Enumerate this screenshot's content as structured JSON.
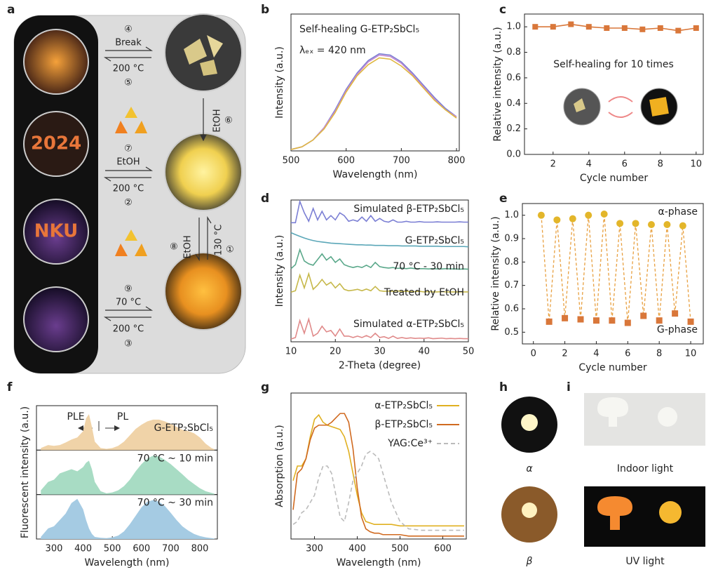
{
  "panel_a": {
    "letter": "a",
    "photo_texts": [
      "2024",
      "NKU"
    ],
    "labels": [
      "④",
      "Break",
      "200 °C",
      "⑤",
      "EtOH",
      "⑥",
      "⑦",
      "EtOH",
      "200 °C",
      "②",
      "⑧",
      "EtOH",
      "130 °C",
      "①",
      "⑨",
      "70 °C",
      "200 °C",
      "③"
    ]
  },
  "panel_h": {
    "letter": "h",
    "captions": [
      "α",
      "β"
    ]
  },
  "panel_i": {
    "letter": "i",
    "captions": [
      "Indoor light",
      "UV light"
    ]
  },
  "chart_data": [
    {
      "panel": "b",
      "type": "line",
      "xlabel": "Wavelength (nm)",
      "ylabel": "Intensity (a.u.)",
      "annotations": [
        "Self-healing G-ETP₂SbCl₅",
        "λₑₓ = 420 nm"
      ],
      "x": [
        500,
        520,
        540,
        560,
        580,
        600,
        620,
        640,
        660,
        680,
        700,
        720,
        740,
        760,
        780,
        800
      ],
      "series": [
        {
          "color": "#7b7fd4",
          "values": [
            0.01,
            0.03,
            0.08,
            0.17,
            0.3,
            0.45,
            0.57,
            0.66,
            0.71,
            0.7,
            0.65,
            0.57,
            0.48,
            0.39,
            0.31,
            0.25
          ]
        },
        {
          "color": "#c48ad0",
          "values": [
            0.01,
            0.03,
            0.08,
            0.17,
            0.29,
            0.44,
            0.56,
            0.65,
            0.7,
            0.69,
            0.64,
            0.56,
            0.47,
            0.38,
            0.3,
            0.25
          ]
        },
        {
          "color": "#e0b840",
          "values": [
            0.01,
            0.03,
            0.08,
            0.16,
            0.28,
            0.43,
            0.55,
            0.63,
            0.68,
            0.67,
            0.62,
            0.55,
            0.46,
            0.37,
            0.3,
            0.24
          ]
        }
      ],
      "xlim": [
        500,
        805
      ],
      "ylim": [
        0,
        1
      ],
      "xticks": [
        500,
        600,
        700,
        800
      ]
    },
    {
      "panel": "c",
      "type": "line",
      "markers": "square",
      "xlabel": "Cycle number",
      "ylabel": "Relative intensity (a.u.)",
      "annotations": [
        "Self-healing for 10 times"
      ],
      "x": [
        1,
        2,
        3,
        4,
        5,
        6,
        7,
        8,
        9,
        10
      ],
      "series": [
        {
          "color": "#d9773a",
          "values": [
            1.0,
            1.0,
            1.02,
            1.0,
            0.99,
            0.99,
            0.98,
            0.99,
            0.97,
            0.99
          ]
        }
      ],
      "xlim": [
        0.4,
        10.4
      ],
      "ylim": [
        0,
        1.1
      ],
      "xticks": [
        2,
        4,
        6,
        8,
        10
      ],
      "yticks": [
        {
          "value": 0,
          "label": "0.0"
        },
        0.2,
        0.4,
        0.6,
        0.8,
        {
          "value": 1,
          "label": "1.0"
        }
      ]
    },
    {
      "panel": "d",
      "type": "line",
      "xlabel": "2-Theta (degree)",
      "ylabel": "Intensity (a.u.)",
      "x": [
        10,
        11,
        12,
        13,
        14,
        15,
        16,
        17,
        18,
        19,
        20,
        21,
        22,
        23,
        24,
        25,
        26,
        27,
        28,
        29,
        30,
        31,
        32,
        33,
        34,
        35,
        36,
        37,
        38,
        39,
        40,
        41,
        42,
        43,
        44,
        45,
        46,
        47,
        48,
        49,
        50
      ],
      "series": [
        {
          "name": "Simulated β-ETP₂SbCl₅",
          "color": "#7b7fd4",
          "values": [
            4.2,
            4.2,
            4.95,
            4.55,
            4.25,
            4.7,
            4.3,
            4.6,
            4.3,
            4.45,
            4.3,
            4.55,
            4.45,
            4.25,
            4.3,
            4.25,
            4.4,
            4.25,
            4.45,
            4.25,
            4.35,
            4.25,
            4.22,
            4.3,
            4.22,
            4.22,
            4.25,
            4.22,
            4.22,
            4.24,
            4.22,
            4.22,
            4.22,
            4.23,
            4.22,
            4.22,
            4.22,
            4.22,
            4.23,
            4.22,
            4.22
          ]
        },
        {
          "name": "G-ETP₂SbCl₅",
          "color": "#5ba7b8",
          "values": [
            3.85,
            3.78,
            3.72,
            3.66,
            3.61,
            3.57,
            3.54,
            3.52,
            3.5,
            3.48,
            3.47,
            3.46,
            3.45,
            3.44,
            3.43,
            3.42,
            3.42,
            3.41,
            3.41,
            3.4,
            3.4,
            3.4,
            3.39,
            3.39,
            3.39,
            3.38,
            3.38,
            3.38,
            3.38,
            3.37,
            3.37,
            3.37,
            3.37,
            3.37,
            3.36,
            3.36,
            3.36,
            3.36,
            3.36,
            3.36,
            3.35
          ]
        },
        {
          "name": "70 °C - 30 min",
          "color": "#5aa88a",
          "values": [
            2.58,
            2.72,
            3.25,
            2.85,
            2.75,
            2.7,
            2.9,
            3.1,
            2.88,
            3.0,
            2.8,
            2.92,
            2.72,
            2.66,
            2.62,
            2.66,
            2.62,
            2.7,
            2.62,
            2.8,
            2.65,
            2.62,
            2.6,
            2.62,
            2.59,
            2.6,
            2.58,
            2.6,
            2.58,
            2.58,
            2.58,
            2.57,
            2.58,
            2.57,
            2.57,
            2.58,
            2.57,
            2.57,
            2.56,
            2.57,
            2.56
          ]
        },
        {
          "name": "Treated by EtOH",
          "color": "#c6b84a",
          "values": [
            1.75,
            1.8,
            2.35,
            1.9,
            2.4,
            1.85,
            2.0,
            2.2,
            2.0,
            2.1,
            1.9,
            2.05,
            1.85,
            1.8,
            1.82,
            1.85,
            1.8,
            1.86,
            1.8,
            1.95,
            1.8,
            1.78,
            1.79,
            1.78,
            1.8,
            1.77,
            1.78,
            1.77,
            1.77,
            1.78,
            1.76,
            1.77,
            1.76,
            1.76,
            1.77,
            1.76,
            1.76,
            1.76,
            1.76,
            1.76,
            1.76
          ]
        },
        {
          "name": "Simulated α-ETP₂SbCl₅",
          "color": "#e08a8a",
          "values": [
            0.1,
            0.15,
            0.75,
            0.3,
            0.8,
            0.2,
            0.3,
            0.55,
            0.35,
            0.4,
            0.2,
            0.45,
            0.2,
            0.2,
            0.15,
            0.2,
            0.15,
            0.22,
            0.15,
            0.3,
            0.15,
            0.18,
            0.12,
            0.2,
            0.12,
            0.15,
            0.12,
            0.14,
            0.12,
            0.13,
            0.12,
            0.14,
            0.11,
            0.12,
            0.13,
            0.11,
            0.12,
            0.11,
            0.12,
            0.11,
            0.11
          ]
        }
      ],
      "xlim": [
        10,
        50
      ],
      "ylim": [
        0,
        5
      ],
      "xticks": [
        10,
        20,
        30,
        40,
        50
      ]
    },
    {
      "panel": "e",
      "type": "scatter",
      "connected": true,
      "line_style": "dashed",
      "xlabel": "Cycle number",
      "ylabel": "Relative intensity (a.u.)",
      "annotations": [
        "α-phase",
        "G-phase"
      ],
      "series": [
        {
          "color": "#e3b62a",
          "marker": "circle",
          "x": [
            0.5,
            1.5,
            2.5,
            3.5,
            4.5,
            5.5,
            6.5,
            7.5,
            8.5,
            9.5
          ],
          "values": [
            1.0,
            0.98,
            0.985,
            1.0,
            1.005,
            0.965,
            0.965,
            0.96,
            0.96,
            0.955
          ]
        },
        {
          "color": "#d9773a",
          "marker": "square",
          "x": [
            1,
            2,
            3,
            4,
            5,
            6,
            7,
            8,
            9,
            10
          ],
          "values": [
            0.545,
            0.56,
            0.555,
            0.55,
            0.55,
            0.54,
            0.57,
            0.55,
            0.58,
            0.545
          ]
        }
      ],
      "xlim": [
        -0.7,
        10.8
      ],
      "ylim": [
        0.45,
        1.05
      ],
      "xticks": [
        0,
        2,
        4,
        6,
        8,
        10
      ],
      "yticks": [
        0.5,
        0.6,
        0.7,
        0.8,
        0.9,
        {
          "value": 1,
          "label": "1.0"
        }
      ]
    },
    {
      "panel": "f",
      "type": "area",
      "xlabel": "Wavelength (nm)",
      "ylabel": "Fluorescent intensity (a.u.)",
      "annotations": [
        "PLE",
        "PL"
      ],
      "x": [
        255,
        280,
        300,
        320,
        340,
        360,
        380,
        400,
        410,
        420,
        430,
        440,
        460,
        480,
        500,
        520,
        540,
        560,
        580,
        600,
        620,
        640,
        660,
        680,
        700,
        720,
        740,
        760,
        780,
        800,
        820,
        840,
        850
      ],
      "series": [
        {
          "name": "G-ETP₂SbCl₅",
          "color": "#f0d3a8",
          "values": [
            0.05,
            0.12,
            0.1,
            0.12,
            0.18,
            0.25,
            0.3,
            0.45,
            0.75,
            0.85,
            0.55,
            0.2,
            0.05,
            0.03,
            0.05,
            0.1,
            0.2,
            0.35,
            0.5,
            0.6,
            0.68,
            0.72,
            0.72,
            0.68,
            0.62,
            0.55,
            0.48,
            0.45,
            0.4,
            0.3,
            0.15,
            0.05,
            0.02
          ]
        },
        {
          "name": "70 °C ~ 10 min",
          "color": "#a8dcc4",
          "values": [
            0.1,
            0.3,
            0.35,
            0.5,
            0.55,
            0.6,
            0.55,
            0.65,
            0.75,
            0.8,
            0.6,
            0.3,
            0.08,
            0.03,
            0.05,
            0.1,
            0.2,
            0.35,
            0.55,
            0.72,
            0.85,
            0.92,
            0.9,
            0.82,
            0.72,
            0.6,
            0.48,
            0.35,
            0.25,
            0.15,
            0.08,
            0.04,
            0.02
          ]
        },
        {
          "name": "70 °C ~ 30 min",
          "color": "#a5cbe3",
          "values": [
            0.05,
            0.25,
            0.3,
            0.45,
            0.6,
            0.85,
            0.95,
            0.7,
            0.45,
            0.25,
            0.12,
            0.05,
            0.03,
            0.02,
            0.04,
            0.08,
            0.18,
            0.35,
            0.55,
            0.75,
            0.88,
            0.92,
            0.88,
            0.78,
            0.62,
            0.45,
            0.3,
            0.2,
            0.12,
            0.07,
            0.04,
            0.02,
            0.01
          ]
        }
      ],
      "xlim": [
        240,
        860
      ],
      "ylim": [
        0,
        1.05
      ],
      "xticks": [
        300,
        400,
        500,
        600,
        700,
        800
      ]
    },
    {
      "panel": "g",
      "type": "line",
      "legend": "upper right",
      "xlabel": "Wavelength (nm)",
      "ylabel": "Absorption (a.u.)",
      "x": [
        250,
        260,
        270,
        280,
        290,
        300,
        310,
        320,
        330,
        340,
        350,
        360,
        370,
        380,
        390,
        400,
        410,
        420,
        430,
        440,
        450,
        460,
        480,
        500,
        520,
        550,
        600,
        650
      ],
      "series": [
        {
          "name": "α-ETP₂SbCl₅",
          "color": "#e0b020",
          "values": [
            0.4,
            0.5,
            0.5,
            0.55,
            0.7,
            0.82,
            0.85,
            0.8,
            0.78,
            0.77,
            0.76,
            0.75,
            0.7,
            0.6,
            0.45,
            0.3,
            0.18,
            0.12,
            0.11,
            0.1,
            0.1,
            0.1,
            0.1,
            0.09,
            0.09,
            0.09,
            0.09,
            0.09
          ]
        },
        {
          "name": "β-ETP₂SbCl₅",
          "color": "#d06a20",
          "values": [
            0.2,
            0.45,
            0.48,
            0.55,
            0.68,
            0.76,
            0.78,
            0.78,
            0.78,
            0.8,
            0.83,
            0.86,
            0.86,
            0.8,
            0.62,
            0.35,
            0.15,
            0.07,
            0.05,
            0.04,
            0.04,
            0.03,
            0.03,
            0.03,
            0.02,
            0.02,
            0.02,
            0.02
          ]
        },
        {
          "name": "YAG:Ce³⁺",
          "color": "#bbbbbb",
          "dash": true,
          "values": [
            0.1,
            0.12,
            0.18,
            0.2,
            0.25,
            0.3,
            0.42,
            0.5,
            0.5,
            0.45,
            0.3,
            0.15,
            0.12,
            0.25,
            0.4,
            0.45,
            0.5,
            0.58,
            0.6,
            0.58,
            0.55,
            0.45,
            0.25,
            0.12,
            0.07,
            0.06,
            0.06,
            0.06
          ]
        }
      ],
      "xlim": [
        245,
        655
      ],
      "ylim": [
        0,
        1
      ],
      "xticks": [
        300,
        400,
        500,
        600
      ]
    }
  ]
}
